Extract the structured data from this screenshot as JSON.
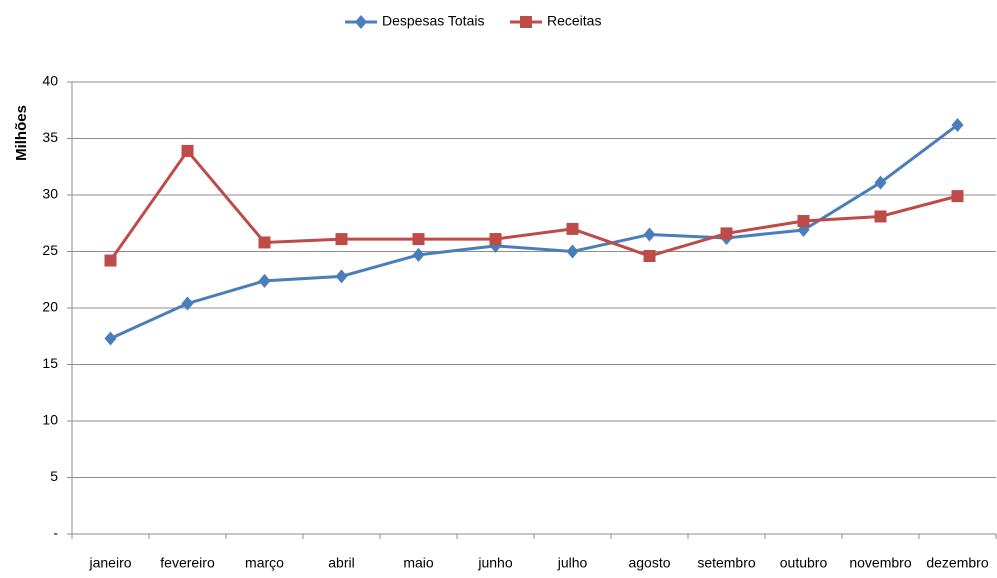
{
  "chart_data": {
    "type": "line",
    "y_label": "Milhões",
    "categories": [
      "janeiro",
      "fevereiro",
      "março",
      "abril",
      "maio",
      "junho",
      "julho",
      "agosto",
      "setembro",
      "outubro",
      "novembro",
      "dezembro"
    ],
    "series": [
      {
        "name": "Despesas Totais",
        "color": "#4a7ebb",
        "marker": "diamond",
        "values": [
          17.3,
          20.4,
          22.4,
          22.8,
          24.7,
          25.5,
          25.0,
          26.5,
          26.2,
          26.9,
          31.1,
          36.2
        ]
      },
      {
        "name": "Receitas",
        "color": "#be4b48",
        "marker": "square",
        "values": [
          24.2,
          33.9,
          25.8,
          26.1,
          26.1,
          26.1,
          27.0,
          24.6,
          26.6,
          27.7,
          28.1,
          29.9
        ]
      }
    ],
    "ylim": [
      0,
      40
    ],
    "yticks": [
      {
        "value": 0,
        "label": "-"
      },
      5,
      10,
      15,
      20,
      25,
      30,
      35,
      40
    ],
    "grid": true,
    "legend": "top"
  }
}
